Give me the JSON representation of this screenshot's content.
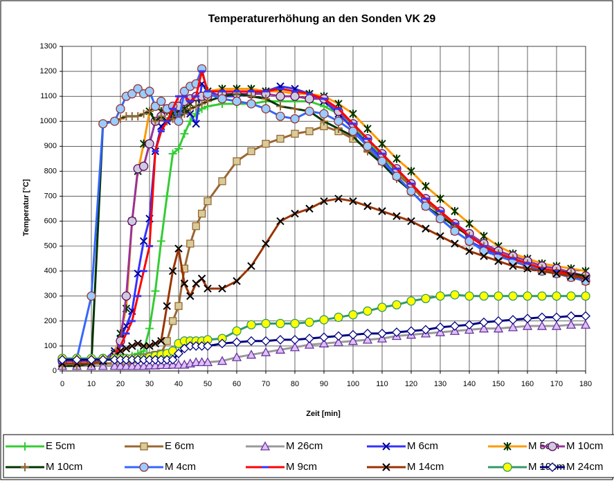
{
  "chart_data": {
    "type": "line",
    "title": "Temperaturerhöhung an den Sonden VK 29",
    "xlabel": "Zeit [min]",
    "ylabel": "Temperatur [°C]",
    "x": [
      0,
      5,
      10,
      14,
      18,
      20,
      22,
      24,
      26,
      28,
      30,
      32,
      34,
      36,
      38,
      40,
      42,
      44,
      46,
      48,
      50,
      55,
      60,
      65,
      70,
      75,
      80,
      85,
      90,
      95,
      100,
      105,
      110,
      115,
      120,
      125,
      130,
      135,
      140,
      145,
      150,
      155,
      160,
      165,
      170,
      175,
      180
    ],
    "xlim": [
      0,
      180
    ],
    "xticks": [
      0,
      10,
      20,
      30,
      40,
      50,
      60,
      70,
      80,
      90,
      100,
      110,
      120,
      130,
      140,
      150,
      160,
      170,
      180
    ],
    "ylim": [
      0,
      1300
    ],
    "yticks": [
      0,
      100,
      200,
      300,
      400,
      500,
      600,
      700,
      800,
      900,
      1000,
      1100,
      1200,
      1300
    ],
    "grid": true,
    "legend": "bottom",
    "series": [
      {
        "name": "E 5cm",
        "color": "#33cc33",
        "marker": "plus",
        "marker_fill": "none",
        "marker_stroke": "#33cc33",
        "values": [
          30,
          30,
          30,
          30,
          30,
          40,
          50,
          60,
          70,
          80,
          170,
          320,
          520,
          700,
          870,
          890,
          950,
          1000,
          1030,
          1050,
          1060,
          1070,
          1070,
          1070,
          1080,
          1080,
          1080,
          1080,
          1060,
          1030,
          980,
          920,
          860,
          800,
          740,
          680,
          630,
          580,
          540,
          500,
          470,
          450,
          430,
          410,
          395,
          380,
          370
        ]
      },
      {
        "name": "E 6cm",
        "color": "#996633",
        "marker": "square",
        "marker_fill": "#d6cc99",
        "marker_stroke": "#996633",
        "values": [
          30,
          30,
          30,
          30,
          30,
          35,
          40,
          45,
          50,
          55,
          60,
          65,
          70,
          120,
          200,
          260,
          410,
          510,
          580,
          630,
          680,
          760,
          840,
          880,
          910,
          930,
          950,
          960,
          980,
          960,
          930,
          890,
          840,
          790,
          740,
          680,
          630,
          580,
          540,
          500,
          470,
          440,
          420,
          400,
          390,
          375,
          360
        ]
      },
      {
        "name": "M 26cm",
        "color": "#999999",
        "marker": "triangle",
        "marker_fill": "#e0c0ff",
        "marker_stroke": "#663399",
        "values": [
          20,
          20,
          20,
          20,
          20,
          20,
          20,
          20,
          20,
          20,
          22,
          22,
          24,
          24,
          25,
          25,
          25,
          30,
          35,
          35,
          35,
          40,
          55,
          65,
          75,
          85,
          95,
          105,
          110,
          115,
          120,
          125,
          130,
          140,
          145,
          150,
          155,
          160,
          165,
          170,
          170,
          175,
          180,
          180,
          180,
          185,
          185
        ]
      },
      {
        "name": "M 6cm",
        "color": "#3333ff",
        "marker": "cross",
        "marker_fill": "none",
        "marker_stroke": "#000099",
        "values": [
          30,
          30,
          30,
          40,
          80,
          130,
          180,
          240,
          390,
          520,
          610,
          880,
          980,
          1000,
          1020,
          1040,
          1040,
          1030,
          990,
          1150,
          1120,
          1100,
          1100,
          1110,
          1120,
          1140,
          1130,
          1110,
          1080,
          1030,
          970,
          910,
          850,
          780,
          720,
          660,
          610,
          560,
          520,
          490,
          460,
          440,
          420,
          400,
          390,
          380,
          370
        ]
      },
      {
        "name": "M 5cm",
        "color": "#ff9900",
        "marker": "star",
        "marker_fill": "none",
        "marker_stroke": "#003300",
        "values": [
          30,
          30,
          30,
          40,
          70,
          150,
          250,
          600,
          800,
          910,
          1040,
          1060,
          1040,
          1040,
          1030,
          1030,
          1050,
          1070,
          1090,
          1100,
          1120,
          1130,
          1130,
          1130,
          1120,
          1120,
          1110,
          1110,
          1100,
          1070,
          1030,
          970,
          910,
          850,
          800,
          740,
          690,
          640,
          590,
          540,
          500,
          470,
          450,
          430,
          420,
          410,
          400
        ]
      },
      {
        "name": "M 10cm",
        "color": "#993399",
        "marker": "circle",
        "marker_fill": "#ccccdd",
        "marker_stroke": "#660066",
        "values": [
          40,
          40,
          40,
          50,
          60,
          120,
          300,
          600,
          810,
          820,
          910,
          1000,
          1020,
          1050,
          1060,
          1060,
          1080,
          1090,
          1100,
          1100,
          1100,
          1110,
          1110,
          1110,
          1110,
          1100,
          1100,
          1090,
          1090,
          1040,
          990,
          930,
          870,
          810,
          750,
          690,
          640,
          590,
          550,
          510,
          480,
          460,
          440,
          420,
          410,
          395,
          380
        ]
      },
      {
        "name": "M 10cm",
        "color": "#003300",
        "marker": "plus",
        "marker_fill": "none",
        "marker_stroke": "#996633",
        "values": [
          20,
          20,
          30,
          990,
          1000,
          1010,
          1020,
          1020,
          1020,
          1030,
          1040,
          1000,
          1020,
          1000,
          1010,
          1020,
          1030,
          1050,
          1060,
          1070,
          1080,
          1100,
          1110,
          1100,
          1090,
          1060,
          1050,
          1040,
          1000,
          970,
          940,
          880,
          830,
          770,
          720,
          660,
          620,
          580,
          540,
          500,
          470,
          450,
          430,
          410,
          400,
          390,
          380
        ]
      },
      {
        "name": "M 4cm",
        "color": "#3366ff",
        "marker": "circle",
        "marker_fill": "#99ccff",
        "marker_stroke": "#993333",
        "values": [
          50,
          50,
          300,
          990,
          1000,
          1050,
          1100,
          1110,
          1130,
          1110,
          1120,
          1060,
          1080,
          1050,
          1060,
          1000,
          1120,
          1140,
          1150,
          1210,
          1110,
          1090,
          1080,
          1070,
          1050,
          1020,
          1010,
          1040,
          1030,
          1000,
          960,
          900,
          840,
          780,
          720,
          660,
          610,
          560,
          520,
          480,
          460,
          440,
          420,
          400,
          390,
          375,
          360
        ]
      },
      {
        "name": "M 9cm",
        "color": "#ff0000",
        "marker": "dash",
        "marker_fill": "none",
        "marker_stroke": "#3333ff",
        "values": [
          30,
          30,
          30,
          40,
          60,
          100,
          150,
          200,
          300,
          400,
          500,
          880,
          960,
          1000,
          1050,
          1100,
          1100,
          1080,
          1100,
          1200,
          1120,
          1120,
          1120,
          1120,
          1120,
          1130,
          1120,
          1110,
          1090,
          1050,
          990,
          930,
          870,
          810,
          750,
          690,
          640,
          590,
          540,
          500,
          470,
          450,
          430,
          410,
          400,
          385,
          370
        ]
      },
      {
        "name": "M 14cm",
        "color": "#993300",
        "marker": "cross",
        "marker_fill": "none",
        "marker_stroke": "#000000",
        "values": [
          30,
          30,
          30,
          40,
          60,
          80,
          90,
          100,
          110,
          100,
          100,
          110,
          120,
          260,
          400,
          490,
          350,
          300,
          350,
          370,
          330,
          330,
          360,
          420,
          510,
          600,
          630,
          650,
          680,
          690,
          680,
          660,
          640,
          620,
          600,
          570,
          540,
          510,
          480,
          460,
          440,
          420,
          410,
          400,
          390,
          380,
          370
        ]
      },
      {
        "name": "M 19cm",
        "color": "#339966",
        "marker": "circle",
        "marker_fill": "#ffff00",
        "marker_stroke": "#339966",
        "values": [
          50,
          50,
          50,
          50,
          50,
          50,
          50,
          50,
          50,
          50,
          55,
          60,
          65,
          70,
          80,
          110,
          120,
          120,
          120,
          120,
          125,
          130,
          160,
          185,
          190,
          190,
          190,
          195,
          205,
          215,
          225,
          240,
          255,
          265,
          280,
          290,
          300,
          305,
          300,
          300,
          300,
          300,
          300,
          300,
          300,
          300,
          300
        ]
      },
      {
        "name": "M 24cm",
        "color": "#000080",
        "marker": "diamond",
        "marker_fill": "#ffffff",
        "marker_stroke": "#000080",
        "values": [
          45,
          45,
          45,
          45,
          45,
          45,
          45,
          45,
          45,
          45,
          45,
          45,
          45,
          45,
          45,
          70,
          90,
          100,
          100,
          100,
          100,
          110,
          115,
          120,
          120,
          125,
          125,
          130,
          135,
          140,
          145,
          150,
          150,
          155,
          160,
          165,
          175,
          180,
          185,
          195,
          200,
          205,
          210,
          215,
          215,
          220,
          220
        ]
      }
    ]
  }
}
